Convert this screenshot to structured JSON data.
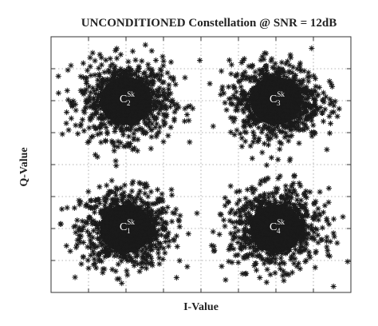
{
  "chart_data": {
    "type": "scatter",
    "title": "UNCONDITIONED Constellation @ SNR = 12dB",
    "xlabel": "I-Value",
    "ylabel": "Q-Value",
    "xlim": [
      -2,
      2
    ],
    "ylim": [
      -2,
      2
    ],
    "grid": true,
    "tick_labels_shown": false,
    "marker": "asterisk",
    "marker_color": "#1a1a1a",
    "clusters": [
      {
        "label": "C",
        "superscript": "Sk",
        "subscript": "1",
        "center": [
          -1,
          -1
        ],
        "spread": 0.3,
        "points": 900
      },
      {
        "label": "C",
        "superscript": "Sk",
        "subscript": "2",
        "center": [
          -1,
          1
        ],
        "spread": 0.3,
        "points": 900
      },
      {
        "label": "C",
        "superscript": "Sk",
        "subscript": "3",
        "center": [
          1,
          1
        ],
        "spread": 0.3,
        "points": 900
      },
      {
        "label": "C",
        "superscript": "Sk",
        "subscript": "4",
        "center": [
          1,
          -1
        ],
        "spread": 0.3,
        "points": 900
      }
    ]
  }
}
